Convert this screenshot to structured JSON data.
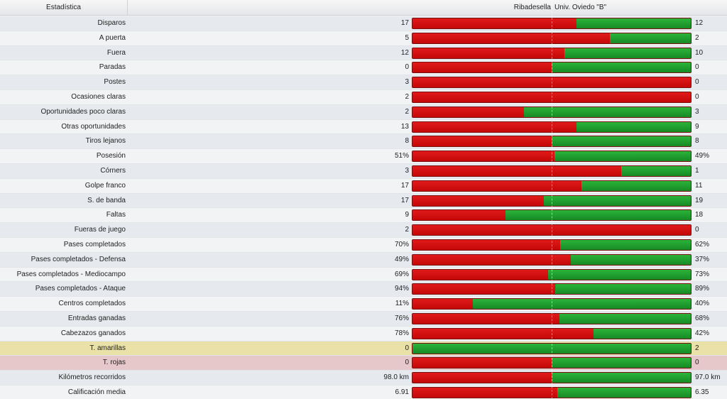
{
  "header": {
    "stat_label": "Estadística",
    "home_team": "Ribadesella",
    "away_team": "Univ. Oviedo \"B\""
  },
  "colors": {
    "home": "#d10f0f",
    "away": "#1f9a2e",
    "yellow_row": "#e9e1a8",
    "red_row": "#e6c8ca"
  },
  "rows": [
    {
      "label": "Disparos",
      "home": "17",
      "away": "12",
      "home_share": 0.59,
      "style": "alt"
    },
    {
      "label": "A puerta",
      "home": "5",
      "away": "2",
      "home_share": 0.71,
      "style": "plain"
    },
    {
      "label": "Fuera",
      "home": "12",
      "away": "10",
      "home_share": 0.545,
      "style": "alt"
    },
    {
      "label": "Paradas",
      "home": "0",
      "away": "0",
      "home_share": 0.5,
      "style": "plain"
    },
    {
      "label": "Postes",
      "home": "3",
      "away": "0",
      "home_share": 1.0,
      "style": "alt"
    },
    {
      "label": "Ocasiones claras",
      "home": "2",
      "away": "0",
      "home_share": 1.0,
      "style": "plain"
    },
    {
      "label": "Oportunidades poco claras",
      "home": "2",
      "away": "3",
      "home_share": 0.4,
      "style": "alt"
    },
    {
      "label": "Otras oportunidades",
      "home": "13",
      "away": "9",
      "home_share": 0.59,
      "style": "plain"
    },
    {
      "label": "Tiros lejanos",
      "home": "8",
      "away": "8",
      "home_share": 0.5,
      "style": "alt"
    },
    {
      "label": "Posesión",
      "home": "51%",
      "away": "49%",
      "home_share": 0.51,
      "style": "plain"
    },
    {
      "label": "Córners",
      "home": "3",
      "away": "1",
      "home_share": 0.75,
      "style": "alt"
    },
    {
      "label": "Golpe franco",
      "home": "17",
      "away": "11",
      "home_share": 0.607,
      "style": "plain"
    },
    {
      "label": "S. de banda",
      "home": "17",
      "away": "19",
      "home_share": 0.472,
      "style": "alt"
    },
    {
      "label": "Faltas",
      "home": "9",
      "away": "18",
      "home_share": 0.333,
      "style": "plain"
    },
    {
      "label": "Fueras de juego",
      "home": "2",
      "away": "0",
      "home_share": 1.0,
      "style": "alt"
    },
    {
      "label": "Pases completados",
      "home": "70%",
      "away": "62%",
      "home_share": 0.53,
      "style": "plain"
    },
    {
      "label": "Pases completados - Defensa",
      "home": "49%",
      "away": "37%",
      "home_share": 0.57,
      "style": "alt"
    },
    {
      "label": "Pases completados - Mediocampo",
      "home": "69%",
      "away": "73%",
      "home_share": 0.486,
      "style": "plain"
    },
    {
      "label": "Pases completados - Ataque",
      "home": "94%",
      "away": "89%",
      "home_share": 0.514,
      "style": "alt"
    },
    {
      "label": "Centros completados",
      "home": "11%",
      "away": "40%",
      "home_share": 0.216,
      "style": "plain"
    },
    {
      "label": "Entradas ganadas",
      "home": "76%",
      "away": "68%",
      "home_share": 0.528,
      "style": "alt"
    },
    {
      "label": "Cabezazos ganados",
      "home": "78%",
      "away": "42%",
      "home_share": 0.65,
      "style": "plain"
    },
    {
      "label": "T. amarillas",
      "home": "0",
      "away": "2",
      "home_share": 0.0,
      "style": "yellow"
    },
    {
      "label": "T. rojas",
      "home": "0",
      "away": "0",
      "home_share": 0.5,
      "style": "red"
    },
    {
      "label": "Kilómetros recorridos",
      "home": "98.0 km",
      "away": "97.0 km",
      "home_share": 0.5,
      "style": "alt"
    },
    {
      "label": "Calificación media",
      "home": "6.91",
      "away": "6.35",
      "home_share": 0.52,
      "style": "plain"
    }
  ]
}
